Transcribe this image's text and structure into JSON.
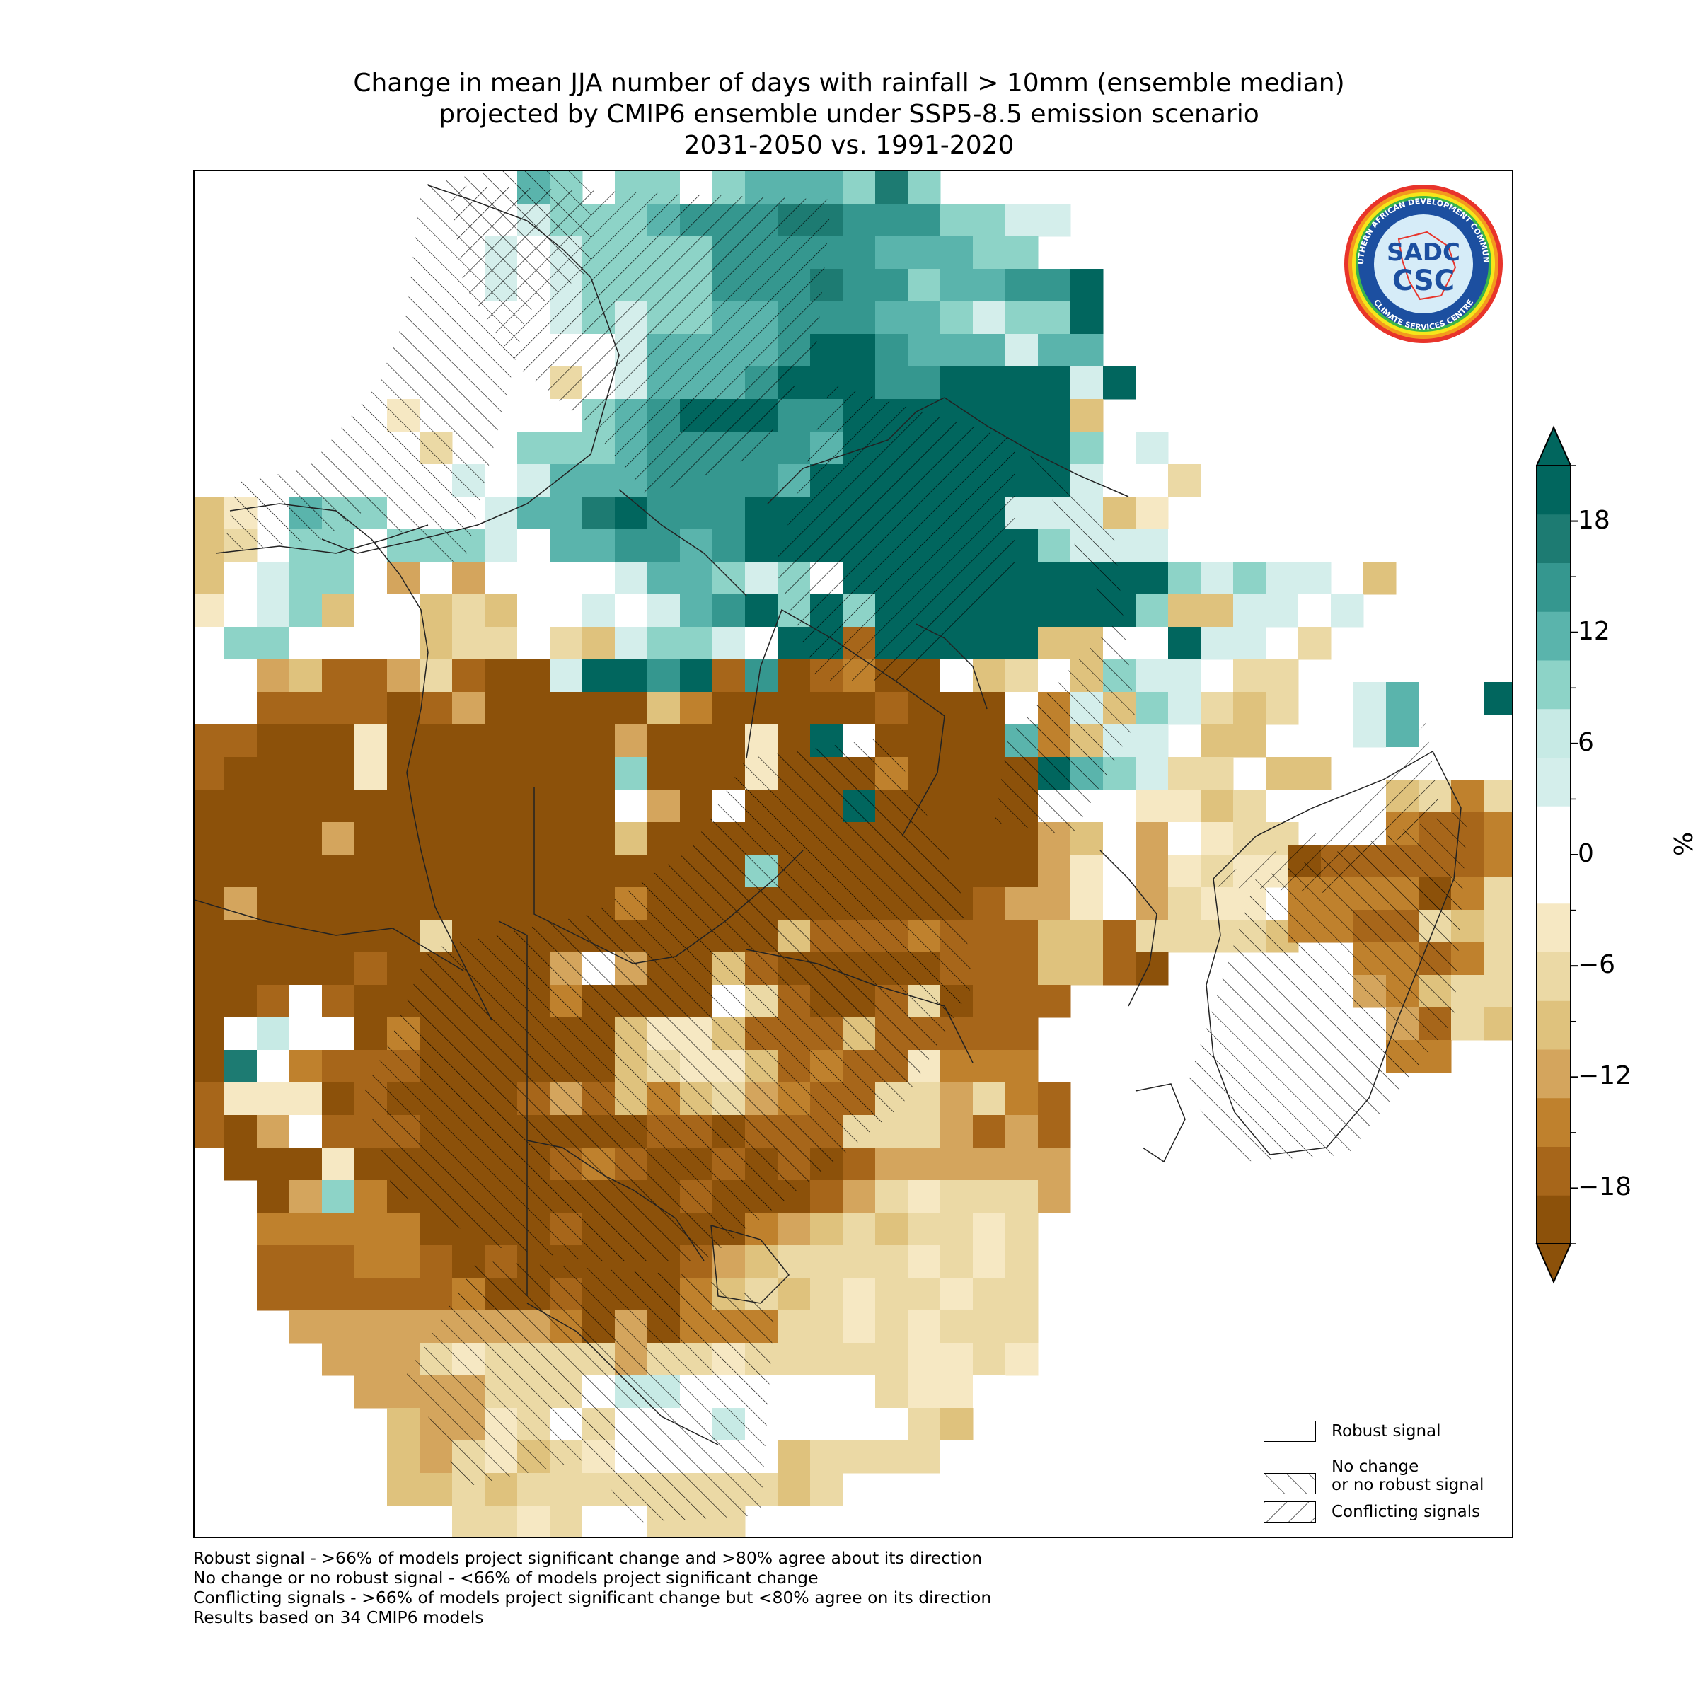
{
  "title": {
    "line1": "Change in mean JJA number of days with rainfall > 10mm (ensemble median)",
    "line2": "projected by CMIP6 ensemble under SSP5-8.5 emission scenario",
    "line3": "2031-2050 vs. 1991-2020"
  },
  "legend": {
    "robust": "Robust signal",
    "no_change_1": "No change",
    "no_change_2": "or no robust signal",
    "conflicting": "Conflicting signals"
  },
  "colorbar": {
    "unit": "%",
    "ticks": [
      "18",
      "12",
      "6",
      "0",
      "−6",
      "−12",
      "−18"
    ],
    "tick_values": [
      18,
      12,
      6,
      0,
      -6,
      -12,
      -18
    ],
    "range": [
      -21,
      21
    ],
    "extend": "both",
    "colors": [
      "#8c510a",
      "#a7661a",
      "#bf812d",
      "#d4a55d",
      "#dfc27d",
      "#ebd9a5",
      "#f6e8c3",
      "#ffffff",
      "#ffffff",
      "#d4eeeb",
      "#c7eae5",
      "#8dd3c7",
      "#5ab4ac",
      "#35978f",
      "#1d7b72",
      "#01665e"
    ]
  },
  "logo": {
    "text_top": "SOUTHERN AFRICAN DEVELOPMENT COMMUNITY",
    "text_bottom": "CLIMATE SERVICES CENTRE",
    "abbr1": "SADC",
    "abbr2": "CSC"
  },
  "footnotes": {
    "line1": "Robust signal - >66% of models project significant change and >80% agree about its direction",
    "line2": "No change or no robust signal - <66% of models project significant change",
    "line3": "Conflicting signals - >66% of models project significant change but <80% agree on its direction",
    "line4": "Results based on 34 CMIP6 models"
  },
  "colors": {
    "strong_decrease": "#8c510a",
    "strong_increase": "#01665e"
  }
}
